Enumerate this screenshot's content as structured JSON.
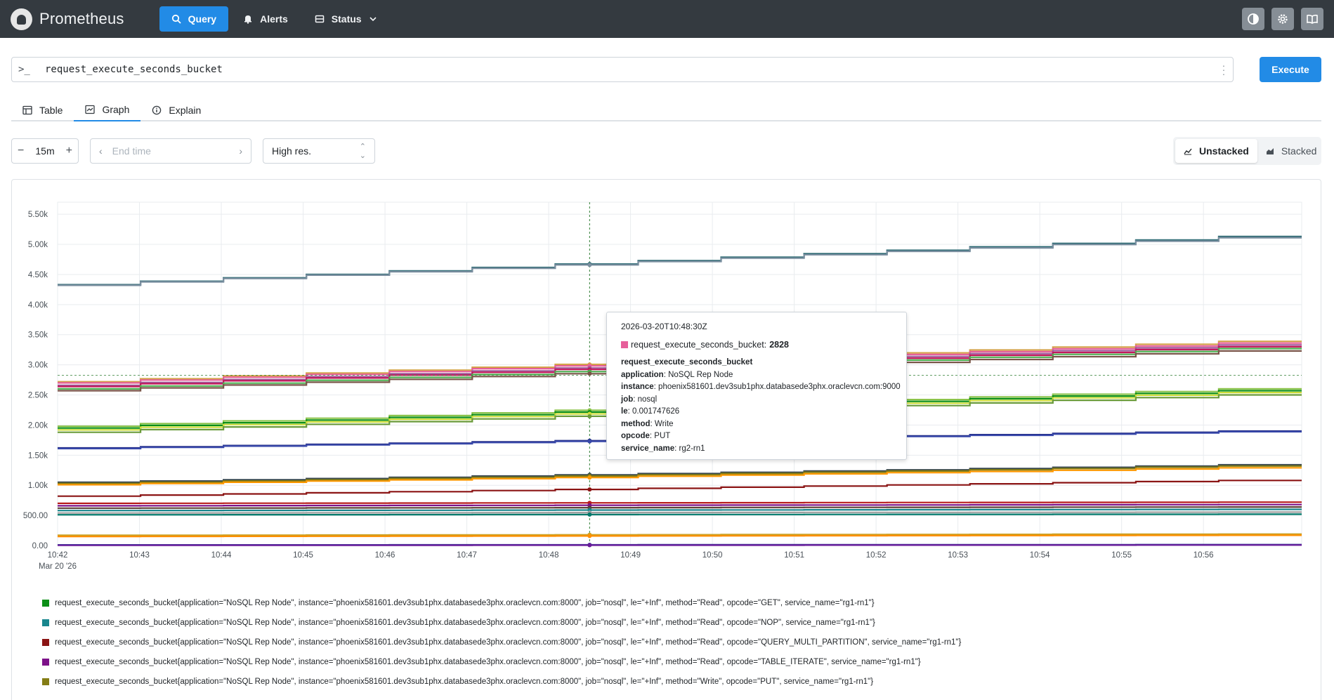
{
  "app": {
    "name": "Prometheus"
  },
  "nav": {
    "query": "Query",
    "alerts": "Alerts",
    "status": "Status"
  },
  "query": {
    "expr": "request_execute_seconds_bucket",
    "execute_label": "Execute"
  },
  "tabs": {
    "table": "Table",
    "graph": "Graph",
    "explain": "Explain"
  },
  "controls": {
    "range": "15m",
    "end_time_placeholder": "End time",
    "resolution": "High res.",
    "unstacked": "Unstacked",
    "stacked": "Stacked"
  },
  "tooltip": {
    "time": "2026-03-20T10:48:30Z",
    "metric": "request_execute_seconds_bucket:",
    "value": "2828",
    "swatch_color": "#e75f9b",
    "name_line": "request_execute_seconds_bucket",
    "labels": [
      {
        "key": "application",
        "value": ": NoSQL Rep Node"
      },
      {
        "key": "instance",
        "value": ": phoenix581601.dev3sub1phx.databasede3phx.oraclevcn.com:9000"
      },
      {
        "key": "job",
        "value": ": nosql"
      },
      {
        "key": "le",
        "value": ": 0.001747626"
      },
      {
        "key": "method",
        "value": ": Write"
      },
      {
        "key": "opcode",
        "value": ": PUT"
      },
      {
        "key": "service_name",
        "value": ": rg2-rn1"
      }
    ]
  },
  "legend": [
    {
      "color": "#0b8f17",
      "label": "request_execute_seconds_bucket{application=\"NoSQL Rep Node\", instance=\"phoenix581601.dev3sub1phx.databasede3phx.oraclevcn.com:8000\", job=\"nosql\", le=\"+Inf\", method=\"Read\", opcode=\"GET\", service_name=\"rg1-rn1\"}"
    },
    {
      "color": "#18868d",
      "label": "request_execute_seconds_bucket{application=\"NoSQL Rep Node\", instance=\"phoenix581601.dev3sub1phx.databasede3phx.oraclevcn.com:8000\", job=\"nosql\", le=\"+Inf\", method=\"Read\", opcode=\"NOP\", service_name=\"rg1-rn1\"}"
    },
    {
      "color": "#8b1414",
      "label": "request_execute_seconds_bucket{application=\"NoSQL Rep Node\", instance=\"phoenix581601.dev3sub1phx.databasede3phx.oraclevcn.com:8000\", job=\"nosql\", le=\"+Inf\", method=\"Read\", opcode=\"QUERY_MULTI_PARTITION\", service_name=\"rg1-rn1\"}"
    },
    {
      "color": "#7d1189",
      "label": "request_execute_seconds_bucket{application=\"NoSQL Rep Node\", instance=\"phoenix581601.dev3sub1phx.databasede3phx.oraclevcn.com:8000\", job=\"nosql\", le=\"+Inf\", method=\"Read\", opcode=\"TABLE_ITERATE\", service_name=\"rg1-rn1\"}"
    },
    {
      "color": "#847d15",
      "label": "request_execute_seconds_bucket{application=\"NoSQL Rep Node\", instance=\"phoenix581601.dev3sub1phx.databasede3phx.oraclevcn.com:8000\", job=\"nosql\", le=\"+Inf\", method=\"Write\", opcode=\"PUT\", service_name=\"rg1-rn1\"}"
    }
  ],
  "chart_data": {
    "type": "line",
    "x_ticks": [
      "10:42",
      "10:43",
      "10:44",
      "10:45",
      "10:46",
      "10:47",
      "10:48",
      "10:49",
      "10:50",
      "10:51",
      "10:52",
      "10:53",
      "10:54",
      "10:55",
      "10:56"
    ],
    "x_date_label": "Mar 20 '26",
    "y_ticks": [
      "0.00",
      "500.00",
      "1.00k",
      "1.50k",
      "2.00k",
      "2.50k",
      "3.00k",
      "3.50k",
      "4.00k",
      "4.50k",
      "5.00k",
      "5.50k"
    ],
    "ylim": [
      0,
      5700
    ],
    "xlim_minutes": [
      0,
      15.2
    ],
    "cursor_minute": 6.5,
    "cursor_value": 2828,
    "series": [
      {
        "color": "#2e6b74",
        "start": 4330,
        "end": 5130
      },
      {
        "color": "#7b8fa0",
        "start": 4320,
        "end": 5110
      },
      {
        "color": "#d4a24a",
        "start": 2720,
        "end": 3390
      },
      {
        "color": "#e75f9b",
        "start": 2700,
        "end": 3360
      },
      {
        "color": "#a05a9a",
        "start": 2660,
        "end": 3330
      },
      {
        "color": "#c2185b",
        "start": 2640,
        "end": 3300
      },
      {
        "color": "#4caf50",
        "start": 2600,
        "end": 3270
      },
      {
        "color": "#795548",
        "start": 2570,
        "end": 3230
      },
      {
        "color": "#8bc34a",
        "start": 1980,
        "end": 2600
      },
      {
        "color": "#0b8f17",
        "start": 1950,
        "end": 2570
      },
      {
        "color": "#cddc39",
        "start": 1920,
        "end": 2540
      },
      {
        "color": "#6a9b3a",
        "start": 1880,
        "end": 2500
      },
      {
        "color": "#1a237e",
        "start": 1620,
        "end": 1900
      },
      {
        "color": "#3949ab",
        "start": 1610,
        "end": 1890
      },
      {
        "color": "#37474f",
        "start": 1050,
        "end": 1340
      },
      {
        "color": "#847d15",
        "start": 1030,
        "end": 1320
      },
      {
        "color": "#ff9800",
        "start": 1010,
        "end": 1290
      },
      {
        "color": "#8b1414",
        "start": 820,
        "end": 1080
      },
      {
        "color": "#b71c1c",
        "start": 700,
        "end": 720
      },
      {
        "color": "#7d1189",
        "start": 660,
        "end": 680
      },
      {
        "color": "#5d4037",
        "start": 620,
        "end": 640
      },
      {
        "color": "#18868d",
        "start": 580,
        "end": 600
      },
      {
        "color": "#9e9e9e",
        "start": 540,
        "end": 555
      },
      {
        "color": "#00796b",
        "start": 510,
        "end": 520
      },
      {
        "color": "#c9a227",
        "start": 170,
        "end": 190
      },
      {
        "color": "#ff8f00",
        "start": 150,
        "end": 170
      },
      {
        "color": "#283593",
        "start": 10,
        "end": 15
      },
      {
        "color": "#6a1b9a",
        "start": 4,
        "end": 8
      }
    ]
  }
}
